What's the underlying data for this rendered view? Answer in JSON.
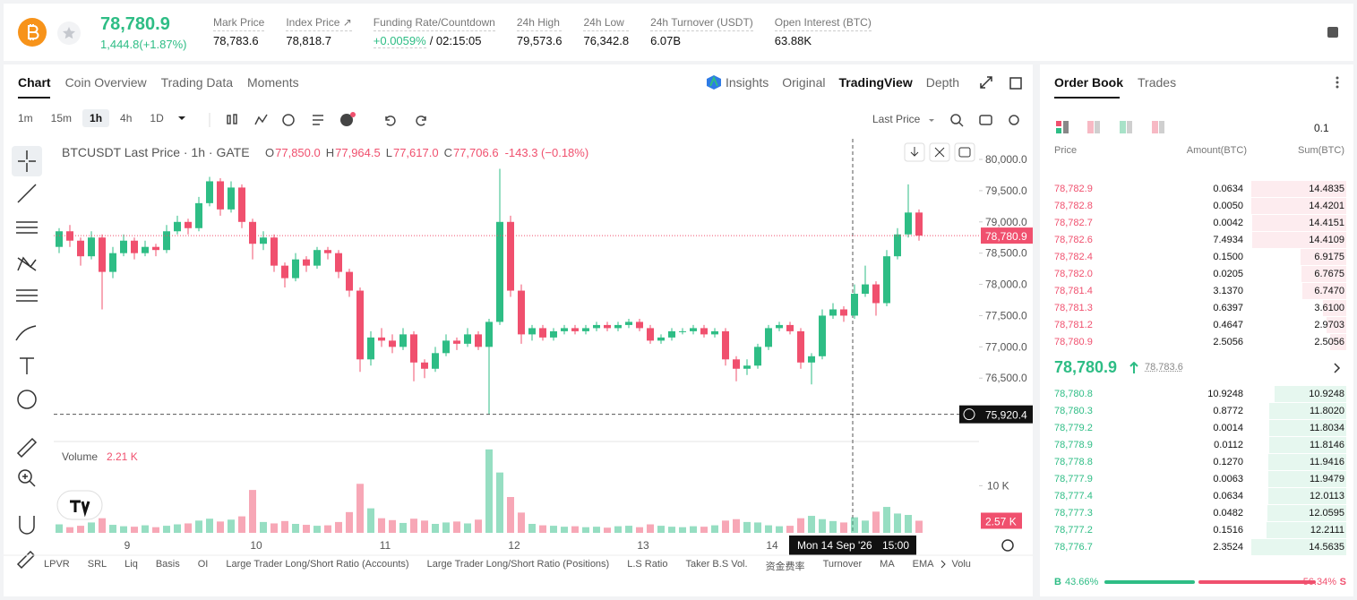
{
  "header": {
    "price": "78,780.9",
    "change": "1,444.8(+1.87%)",
    "stats": [
      {
        "label": "Mark Price",
        "value": "78,783.6"
      },
      {
        "label": "Index Price ↗",
        "value": "78,818.7"
      },
      {
        "label": "Funding Rate/Countdown",
        "value": "+0.0059%",
        "extra": "/ 02:15:05"
      },
      {
        "label": "24h High",
        "value": "79,573.6"
      },
      {
        "label": "24h Low",
        "value": "76,342.8"
      },
      {
        "label": "24h Turnover (USDT)",
        "value": "6.07B"
      },
      {
        "label": "Open Interest (BTC)",
        "value": "63.88K"
      }
    ]
  },
  "chart_tabs": [
    "Chart",
    "Coin Overview",
    "Trading Data",
    "Moments"
  ],
  "view_tabs": [
    "Insights",
    "Original",
    "TradingView",
    "Depth"
  ],
  "intervals": [
    "1m",
    "15m",
    "1h",
    "4h",
    "1D"
  ],
  "price_source": "Last Price",
  "indicators": [
    "LPVR",
    "SRL",
    "Liq",
    "Basis",
    "OI",
    "Large Trader Long/Short Ratio (Accounts)",
    "Large Trader Long/Short Ratio (Positions)",
    "L.S Ratio",
    "Taker B.S Vol.",
    "资金费率",
    "Turnover",
    "MA",
    "EMA",
    "Volu"
  ],
  "chart_data": {
    "type": "candlestick",
    "title": "BTCUSDT Last Price · 1h · GATE",
    "ohlc_legend": [
      {
        "key": "O",
        "value": "77,850.0"
      },
      {
        "key": "H",
        "value": "77,964.5"
      },
      {
        "key": "L",
        "value": "77,617.0"
      },
      {
        "key": "C",
        "value": "77,706.6"
      },
      {
        "key": "",
        "value": "-143.3 (−0.18%)"
      }
    ],
    "up_color": "#2ebd85",
    "down_color": "#f0506e",
    "ylim": [
      75500,
      80330
    ],
    "yticks": [
      {
        "value": 76500,
        "label": "76,500.0"
      },
      {
        "value": 77000,
        "label": "77,000.0"
      },
      {
        "value": 77500,
        "label": "77,500.0"
      },
      {
        "value": 78000,
        "label": "78,000.0"
      },
      {
        "value": 78500,
        "label": "78,500.0"
      },
      {
        "value": 79000,
        "label": "79,000.0"
      },
      {
        "value": 79500,
        "label": "79,500.0"
      },
      {
        "value": 80000,
        "label": "80,000.0"
      }
    ],
    "xticks": [
      "9",
      "10",
      "11",
      "12",
      "13",
      "14"
    ],
    "last_price": {
      "value": 78780.9,
      "label": "78,780.9"
    },
    "crosshair": {
      "value": 75920.4,
      "label": "75,920.4",
      "date": "Mon 14 Sep '26",
      "time": "15:00"
    },
    "candles": [
      [
        78600,
        78900,
        78500,
        78850
      ],
      [
        78850,
        78950,
        78600,
        78700
      ],
      [
        78700,
        78750,
        78300,
        78450
      ],
      [
        78450,
        78850,
        78400,
        78750
      ],
      [
        78750,
        78800,
        77600,
        78200
      ],
      [
        78200,
        78600,
        78100,
        78500
      ],
      [
        78500,
        78800,
        78450,
        78700
      ],
      [
        78700,
        78750,
        78400,
        78500
      ],
      [
        78500,
        78700,
        78450,
        78600
      ],
      [
        78600,
        78650,
        78450,
        78550
      ],
      [
        78550,
        78950,
        78500,
        78850
      ],
      [
        78850,
        79100,
        78800,
        79000
      ],
      [
        79000,
        79050,
        78800,
        78900
      ],
      [
        78900,
        79400,
        78850,
        79300
      ],
      [
        79300,
        79720,
        79250,
        79650
      ],
      [
        79650,
        79700,
        79100,
        79200
      ],
      [
        79200,
        79650,
        79150,
        79550
      ],
      [
        79550,
        79600,
        78900,
        79000
      ],
      [
        79000,
        79050,
        78400,
        78650
      ],
      [
        78650,
        78850,
        78550,
        78750
      ],
      [
        78750,
        78800,
        78200,
        78300
      ],
      [
        78300,
        78350,
        77950,
        78100
      ],
      [
        78100,
        78500,
        78050,
        78400
      ],
      [
        78400,
        78450,
        78200,
        78300
      ],
      [
        78300,
        78600,
        78250,
        78550
      ],
      [
        78550,
        78600,
        78400,
        78500
      ],
      [
        78500,
        78550,
        78100,
        78200
      ],
      [
        78200,
        78250,
        77800,
        77900
      ],
      [
        77900,
        77950,
        76600,
        76800
      ],
      [
        76800,
        77250,
        76700,
        77150
      ],
      [
        77150,
        77300,
        77000,
        77100
      ],
      [
        77100,
        77200,
        76900,
        77000
      ],
      [
        77000,
        77300,
        76950,
        77200
      ],
      [
        77200,
        77250,
        76450,
        76750
      ],
      [
        76750,
        76800,
        76500,
        76650
      ],
      [
        76650,
        77000,
        76600,
        76900
      ],
      [
        76900,
        77200,
        76850,
        77100
      ],
      [
        77100,
        77150,
        76950,
        77050
      ],
      [
        77050,
        77300,
        77000,
        77200
      ],
      [
        77200,
        77250,
        76950,
        77000
      ],
      [
        77000,
        77450,
        75920,
        77400
      ],
      [
        77400,
        79850,
        77350,
        79000
      ],
      [
        79000,
        79100,
        77800,
        77900
      ],
      [
        77900,
        78000,
        77050,
        77200
      ],
      [
        77200,
        77350,
        77100,
        77300
      ],
      [
        77300,
        77350,
        77100,
        77150
      ],
      [
        77150,
        77300,
        77100,
        77250
      ],
      [
        77250,
        77350,
        77200,
        77300
      ],
      [
        77300,
        77350,
        77200,
        77250
      ],
      [
        77250,
        77350,
        77200,
        77300
      ],
      [
        77300,
        77400,
        77250,
        77350
      ],
      [
        77350,
        77400,
        77250,
        77300
      ],
      [
        77300,
        77400,
        77250,
        77350
      ],
      [
        77350,
        77450,
        77300,
        77400
      ],
      [
        77400,
        77450,
        77250,
        77300
      ],
      [
        77300,
        77350,
        77050,
        77100
      ],
      [
        77100,
        77200,
        77050,
        77150
      ],
      [
        77150,
        77300,
        77100,
        77250
      ],
      [
        77250,
        77300,
        77200,
        77250
      ],
      [
        77250,
        77350,
        77200,
        77300
      ],
      [
        77300,
        77350,
        77150,
        77200
      ],
      [
        77200,
        77300,
        77150,
        77250
      ],
      [
        77250,
        77300,
        76700,
        76800
      ],
      [
        76800,
        76850,
        76450,
        76650
      ],
      [
        76650,
        76800,
        76550,
        76700
      ],
      [
        76700,
        77050,
        76650,
        77000
      ],
      [
        77000,
        77350,
        76950,
        77300
      ],
      [
        77300,
        77400,
        77250,
        77350
      ],
      [
        77350,
        77400,
        77200,
        77250
      ],
      [
        77250,
        77300,
        76650,
        76750
      ],
      [
        76750,
        76900,
        76400,
        76850
      ],
      [
        76850,
        77600,
        76800,
        77500
      ],
      [
        77500,
        77700,
        77450,
        77600
      ],
      [
        77600,
        77650,
        77400,
        77500
      ],
      [
        77500,
        78000,
        77450,
        77850
      ],
      [
        77850,
        78300,
        77800,
        78000
      ],
      [
        78000,
        78050,
        77500,
        77700
      ],
      [
        77700,
        78550,
        77650,
        78450
      ],
      [
        78450,
        78900,
        78400,
        78800
      ],
      [
        78800,
        79600,
        78750,
        79150
      ],
      [
        79150,
        79200,
        78700,
        78780.9
      ]
    ],
    "volume": {
      "title": "Volume",
      "current": "2.21 K",
      "ylim": [
        0,
        19000
      ],
      "yticks": [
        {
          "value": 10000,
          "label": "10 K"
        }
      ],
      "last": {
        "value": 2570,
        "label": "2.57 K"
      },
      "values": [
        1800,
        1200,
        1500,
        2200,
        3100,
        1700,
        1400,
        1300,
        1600,
        1200,
        1500,
        1800,
        2000,
        2600,
        3000,
        2400,
        2800,
        3500,
        9100,
        2300,
        2000,
        2500,
        1900,
        1700,
        1500,
        1600,
        2300,
        4400,
        10400,
        5200,
        3100,
        2700,
        2100,
        3000,
        2600,
        1900,
        2200,
        2400,
        2000,
        2800,
        17700,
        12800,
        7600,
        4300,
        1900,
        1600,
        1500,
        1300,
        1400,
        1200,
        1300,
        1100,
        1400,
        1500,
        1200,
        1800,
        1500,
        1300,
        1200,
        1400,
        1300,
        1600,
        2600,
        2900,
        2300,
        2200,
        1600,
        1400,
        1500,
        3100,
        3600,
        2900,
        2500,
        2200,
        3300,
        2600,
        4500,
        5500,
        4100,
        3800,
        2570
      ]
    }
  },
  "order_book": {
    "tabs": [
      "Order Book",
      "Trades"
    ],
    "precision": "0.1",
    "columns": [
      "Price",
      "Amount(BTC)",
      "Sum(BTC)"
    ],
    "asks": [
      [
        "78,782.9",
        "0.0634",
        14.4835
      ],
      [
        "78,782.8",
        "0.0050",
        14.4201
      ],
      [
        "78,782.7",
        "0.0042",
        14.4151
      ],
      [
        "78,782.6",
        "7.4934",
        14.4109
      ],
      [
        "78,782.4",
        "0.1500",
        6.9175
      ],
      [
        "78,782.0",
        "0.0205",
        6.7675
      ],
      [
        "78,781.4",
        "3.1370",
        6.747
      ],
      [
        "78,781.3",
        "0.6397",
        3.61
      ],
      [
        "78,781.2",
        "0.4647",
        2.9703
      ],
      [
        "78,780.9",
        "2.5056",
        2.5056
      ]
    ],
    "ask_sum_labels": [
      "14.4835",
      "14.4201",
      "14.4151",
      "14.4109",
      "6.9175",
      "6.7675",
      "6.7470",
      "3.6100",
      "2.9703",
      "2.5056"
    ],
    "mid_price": "78,780.9",
    "mark_price": "78,783.6",
    "bids": [
      [
        "78,780.8",
        "10.9248",
        10.9248
      ],
      [
        "78,780.3",
        "0.8772",
        11.802
      ],
      [
        "78,779.2",
        "0.0014",
        11.8034
      ],
      [
        "78,778.9",
        "0.0112",
        11.8146
      ],
      [
        "78,778.8",
        "0.1270",
        11.9416
      ],
      [
        "78,777.9",
        "0.0063",
        11.9479
      ],
      [
        "78,777.4",
        "0.0634",
        12.0113
      ],
      [
        "78,777.3",
        "0.0482",
        12.0595
      ],
      [
        "78,777.2",
        "0.1516",
        12.2111
      ],
      [
        "78,776.7",
        "2.3524",
        14.5635
      ]
    ],
    "bid_sum_labels": [
      "10.9248",
      "11.8020",
      "11.8034",
      "11.8146",
      "11.9416",
      "11.9479",
      "12.0113",
      "12.0595",
      "12.2111",
      "14.5635"
    ],
    "buy_label": "B",
    "sell_label": "S",
    "buy_ratio": 43.66,
    "sell_ratio": 56.34,
    "value_labels": [
      "43.66%",
      "56.34%"
    ]
  }
}
